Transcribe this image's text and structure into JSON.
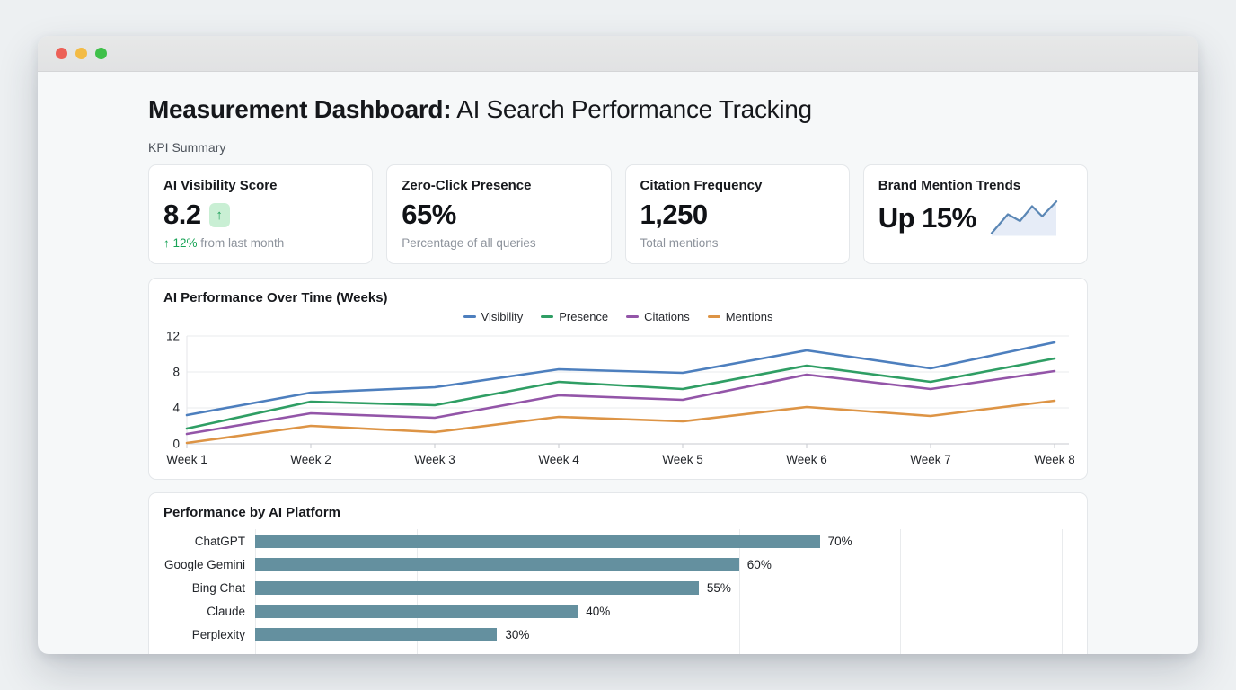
{
  "header": {
    "title_bold": "Measurement Dashboard:",
    "title_rest": "AI Search Performance Tracking",
    "section_label": "KPI Summary"
  },
  "kpi_cards": {
    "visibility": {
      "title": "AI Visibility Score",
      "value": "8.2",
      "badge_icon": "up-arrow",
      "badge_glyph": "↑",
      "delta": "↑ 12%",
      "delta_note": " from last month",
      "delta_color": "#18a356",
      "badge_bg": "#c9efd4"
    },
    "zero_click": {
      "title": "Zero-Click Presence",
      "value": "65%",
      "subtitle": "Percentage of all queries"
    },
    "citation": {
      "title": "Citation Frequency",
      "value": "1,250",
      "subtitle": "Total mentions"
    },
    "brand_mention": {
      "title": "Brand Mention Trends",
      "value": "Up 15%",
      "sparkline_points": [
        [
          2,
          50
        ],
        [
          26,
          22
        ],
        [
          44,
          32
        ],
        [
          62,
          10
        ],
        [
          77,
          25
        ],
        [
          98,
          3
        ]
      ],
      "sparkline_stroke": "#5b87b5",
      "sparkline_fill": "#e6ecf7"
    }
  },
  "chart_data": [
    {
      "type": "line",
      "title": "AI Performance Over Time (Weeks)",
      "categories": [
        "Week 1",
        "Week 2",
        "Week 3",
        "Week 4",
        "Week 5",
        "Week 6",
        "Week 7",
        "Week 8"
      ],
      "series": [
        {
          "name": "Visibility",
          "color": "#4d7fbe",
          "values": [
            3.2,
            5.7,
            6.3,
            8.3,
            7.9,
            10.4,
            8.4,
            11.3
          ]
        },
        {
          "name": "Presence",
          "color": "#2f9e64",
          "values": [
            1.7,
            4.7,
            4.3,
            6.9,
            6.1,
            8.7,
            6.9,
            9.5
          ]
        },
        {
          "name": "Citations",
          "color": "#9355a8",
          "values": [
            1.1,
            3.4,
            2.9,
            5.4,
            4.9,
            7.7,
            6.1,
            8.1
          ]
        },
        {
          "name": "Mentions",
          "color": "#dd9445",
          "values": [
            0.1,
            2.0,
            1.3,
            3.0,
            2.5,
            4.1,
            3.1,
            4.8
          ]
        }
      ],
      "ylim": [
        0,
        12
      ],
      "yticks": [
        0,
        4,
        8,
        12
      ],
      "grid": true,
      "legend_position": "top-center"
    },
    {
      "type": "bar",
      "title": "Performance by AI Platform",
      "orientation": "horizontal",
      "categories": [
        "ChatGPT",
        "Google Gemini",
        "Bing Chat",
        "Claude",
        "Perplexity"
      ],
      "values": [
        70,
        60,
        55,
        40,
        30
      ],
      "value_labels": [
        "70%",
        "60%",
        "55%",
        "40%",
        "30%"
      ],
      "xlim": [
        0,
        100
      ],
      "grid_step": 20,
      "bar_color": "#64909f"
    }
  ],
  "window_controls": {
    "close_color": "#ec6057",
    "minimize_color": "#f3bb45",
    "zoom_color": "#3fc04a"
  }
}
